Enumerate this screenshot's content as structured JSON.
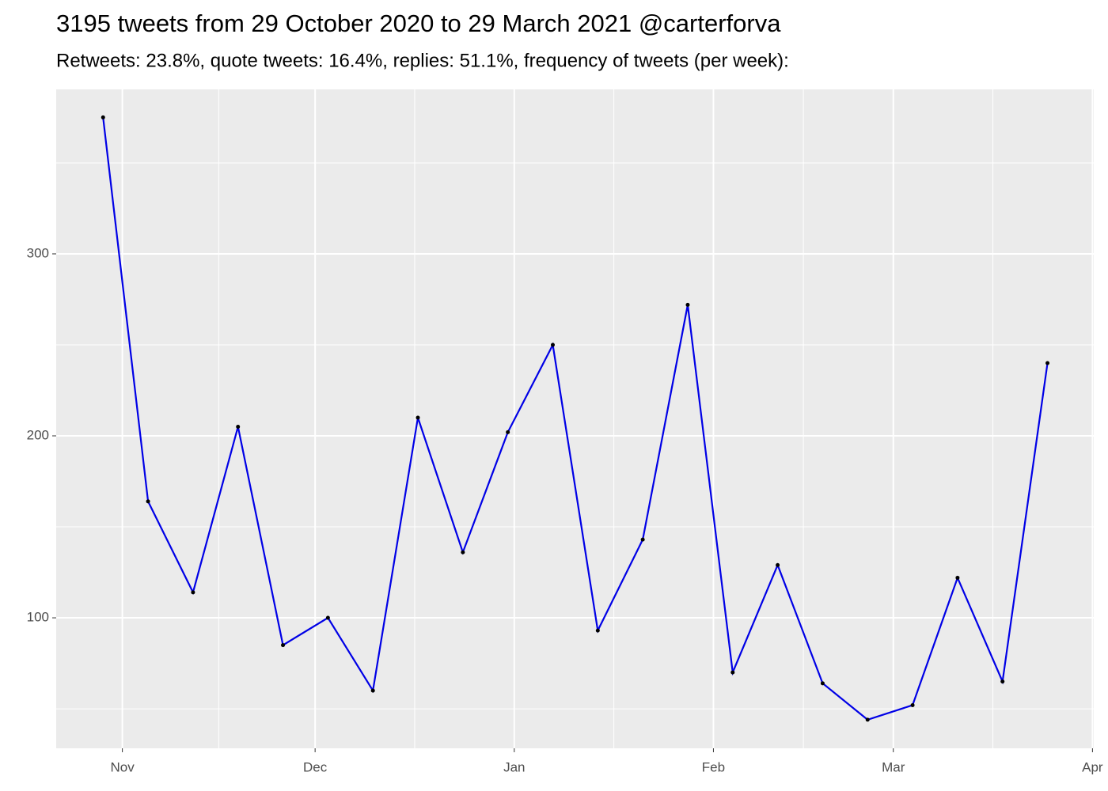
{
  "chart_data": {
    "type": "line",
    "title": "3195 tweets from 29 October 2020 to 29 March 2021 @carterforva",
    "subtitle": "Retweets: 23.8%, quote tweets: 16.4%, replies: 51.1%, frequency of tweets (per week):",
    "x": [
      0,
      7,
      14,
      21,
      28,
      35,
      42,
      49,
      56,
      63,
      70,
      77,
      84,
      91,
      98,
      105,
      112,
      119,
      126,
      133,
      140,
      147
    ],
    "series": [
      {
        "color": "#0000e6",
        "values": [
          375,
          164,
          114,
          205,
          85,
          100,
          60,
          210,
          136,
          202,
          250,
          93,
          143,
          272,
          70,
          129,
          64,
          44,
          52,
          122,
          65,
          240
        ]
      }
    ],
    "xlim": [
      -7.3,
      154.2
    ],
    "xticks": [
      {
        "value": 3,
        "label": "Nov"
      },
      {
        "value": 33,
        "label": "Dec"
      },
      {
        "value": 64,
        "label": "Jan"
      },
      {
        "value": 95,
        "label": "Feb"
      },
      {
        "value": 123,
        "label": "Mar"
      },
      {
        "value": 154,
        "label": "Apr"
      }
    ],
    "ylim": [
      28.3,
      390.4
    ],
    "yticks": [
      100,
      200,
      300
    ],
    "grid": true
  }
}
